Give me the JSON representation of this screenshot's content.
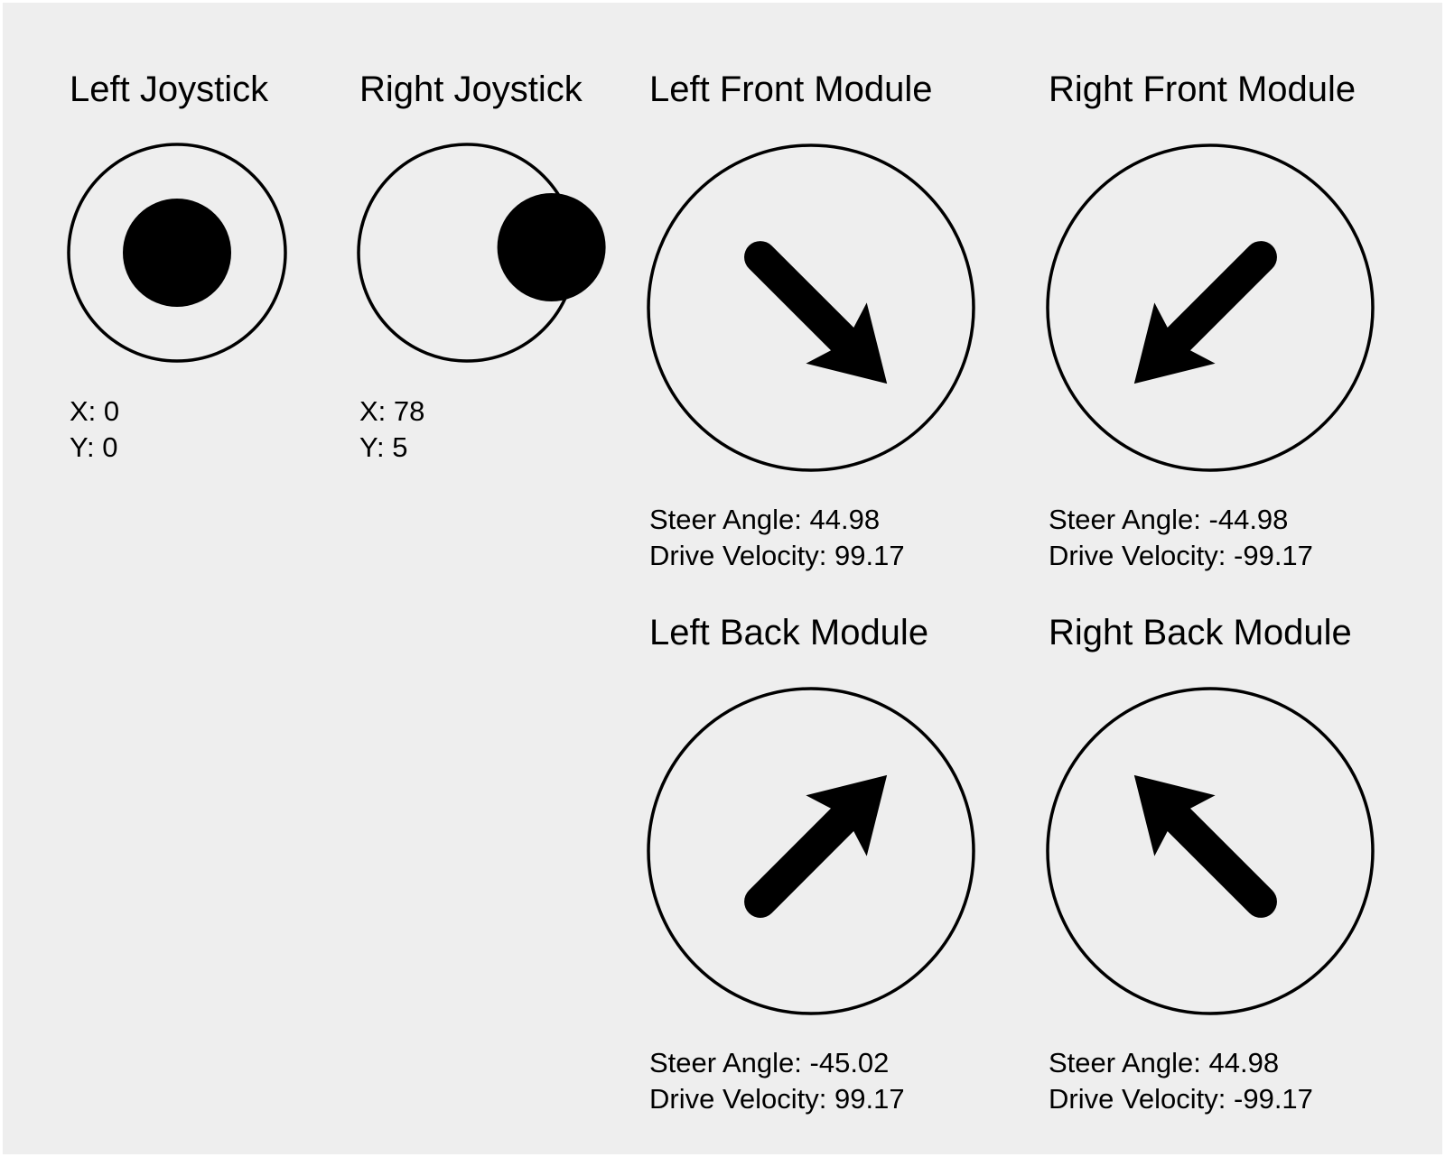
{
  "joysticks": [
    {
      "title": "Left Joystick",
      "x_label": "X: ",
      "x": 0,
      "y_label": "Y: ",
      "y": 0,
      "x_text": "X: 0",
      "y_text": "Y: 0"
    },
    {
      "title": "Right Joystick",
      "x_label": "X: ",
      "x": 78,
      "y_label": "Y: ",
      "y": 5,
      "x_text": "X: 78",
      "y_text": "Y: 5"
    }
  ],
  "modules": [
    {
      "title": "Left Front Module",
      "steer_angle": 44.98,
      "drive_velocity": 99.17,
      "steer_text": "Steer Angle: 44.98",
      "velocity_text": "Drive Velocity: 99.17"
    },
    {
      "title": "Right Front Module",
      "steer_angle": -44.98,
      "drive_velocity": -99.17,
      "steer_text": "Steer Angle: -44.98",
      "velocity_text": "Drive Velocity: -99.17"
    },
    {
      "title": "Left Back Module",
      "steer_angle": -45.02,
      "drive_velocity": 99.17,
      "steer_text": "Steer Angle: -45.02",
      "velocity_text": "Drive Velocity: 99.17"
    },
    {
      "title": "Right Back Module",
      "steer_angle": 44.98,
      "drive_velocity": -99.17,
      "steer_text": "Steer Angle: 44.98",
      "velocity_text": "Drive Velocity: -99.17"
    }
  ],
  "colors": {
    "background": "#eeeeee",
    "foreground": "#000000"
  },
  "icons": {
    "joystick_knob": "filled-circle",
    "module_direction": "arrow"
  }
}
